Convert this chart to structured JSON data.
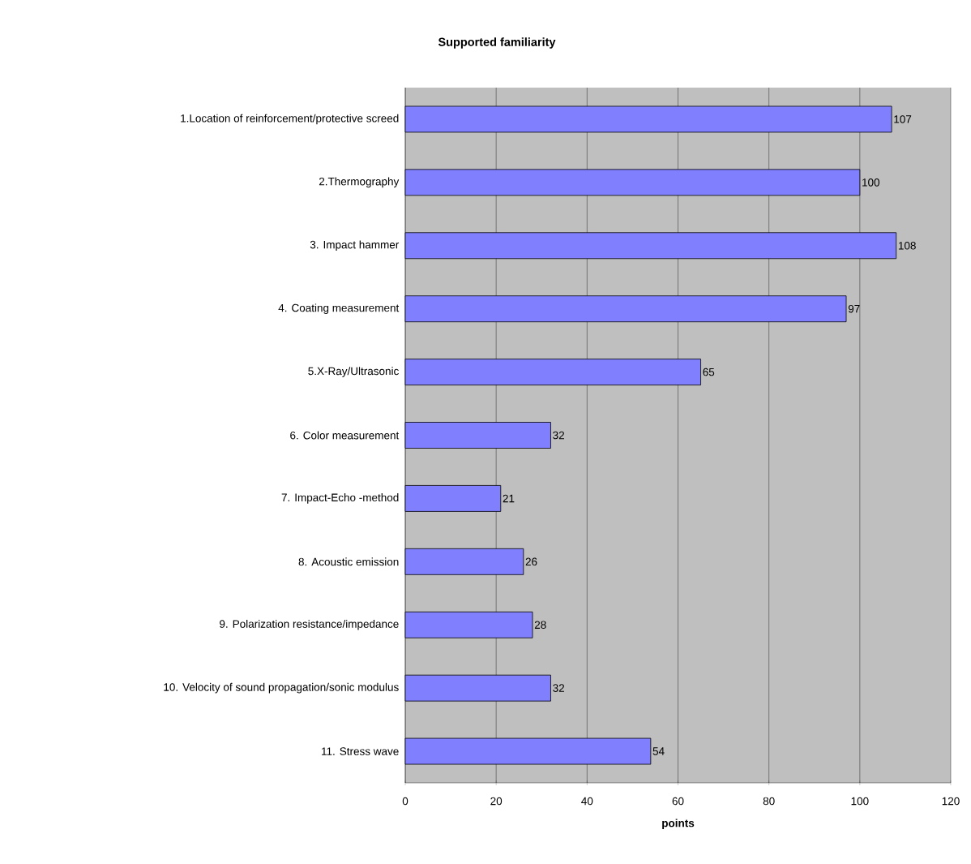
{
  "chart_data": {
    "type": "bar",
    "orientation": "horizontal",
    "title": "Supported familiarity",
    "xlabel": "points",
    "categories": [
      "1.Location of reinforcement/protective screed",
      "2.Thermography",
      "3. Impact hammer",
      "4. Coating measurement",
      "5.X-Ray/Ultrasonic",
      "6. Color measurement",
      "7. Impact-Echo -method",
      "8. Acoustic emission",
      "9. Polarization resistance/impedance",
      "10. Velocity of sound propagation/sonic modulus",
      "11. Stress wave"
    ],
    "values": [
      107,
      100,
      108,
      97,
      65,
      32,
      21,
      26,
      28,
      32,
      54
    ],
    "color": "#8080ff",
    "xlim": [
      0,
      120
    ],
    "xticks": [
      0,
      20,
      40,
      60,
      80,
      100,
      120
    ],
    "grid": "x",
    "data_labels": true
  }
}
